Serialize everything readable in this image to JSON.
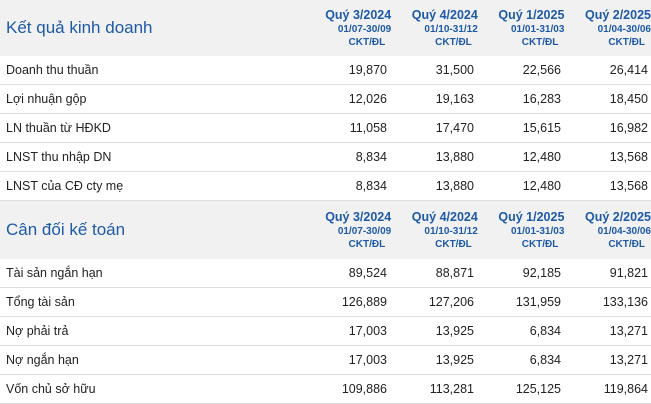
{
  "sections": [
    {
      "title": "Kết quả kinh doanh",
      "columns": [
        {
          "quarter": "Quý 3/2024",
          "range": "01/07-30/09",
          "unit": "CKT/ĐL"
        },
        {
          "quarter": "Quý 4/2024",
          "range": "01/10-31/12",
          "unit": "CKT/ĐL"
        },
        {
          "quarter": "Quý 1/2025",
          "range": "01/01-31/03",
          "unit": "CKT/ĐL"
        },
        {
          "quarter": "Quý 2/2025",
          "range": "01/04-30/06",
          "unit": "CKT/ĐL"
        }
      ],
      "rows": [
        {
          "label": "Doanh thu thuần",
          "values": [
            "19,870",
            "31,500",
            "22,566",
            "26,414"
          ]
        },
        {
          "label": "Lợi nhuận gộp",
          "values": [
            "12,026",
            "19,163",
            "16,283",
            "18,450"
          ]
        },
        {
          "label": "LN thuần từ HĐKD",
          "values": [
            "11,058",
            "17,470",
            "15,615",
            "16,982"
          ]
        },
        {
          "label": "LNST thu nhập DN",
          "values": [
            "8,834",
            "13,880",
            "12,480",
            "13,568"
          ]
        },
        {
          "label": "LNST của CĐ cty mẹ",
          "values": [
            "8,834",
            "13,880",
            "12,480",
            "13,568"
          ]
        }
      ]
    },
    {
      "title": "Cân đối kế toán",
      "columns": [
        {
          "quarter": "Quý 3/2024",
          "range": "01/07-30/09",
          "unit": "CKT/ĐL"
        },
        {
          "quarter": "Quý 4/2024",
          "range": "01/10-31/12",
          "unit": "CKT/ĐL"
        },
        {
          "quarter": "Quý 1/2025",
          "range": "01/01-31/03",
          "unit": "CKT/ĐL"
        },
        {
          "quarter": "Quý 2/2025",
          "range": "01/04-30/06",
          "unit": "CKT/ĐL"
        }
      ],
      "rows": [
        {
          "label": "Tài sản ngắn hạn",
          "values": [
            "89,524",
            "88,871",
            "92,185",
            "91,821"
          ]
        },
        {
          "label": "Tổng tài sản",
          "values": [
            "126,889",
            "127,206",
            "131,959",
            "133,136"
          ]
        },
        {
          "label": "Nợ phải trả",
          "values": [
            "17,003",
            "13,925",
            "6,834",
            "13,271"
          ]
        },
        {
          "label": "Nợ ngắn hạn",
          "values": [
            "17,003",
            "13,925",
            "6,834",
            "13,271"
          ]
        },
        {
          "label": "Vốn chủ sở hữu",
          "values": [
            "109,886",
            "113,281",
            "125,125",
            "119,864"
          ]
        }
      ]
    }
  ]
}
